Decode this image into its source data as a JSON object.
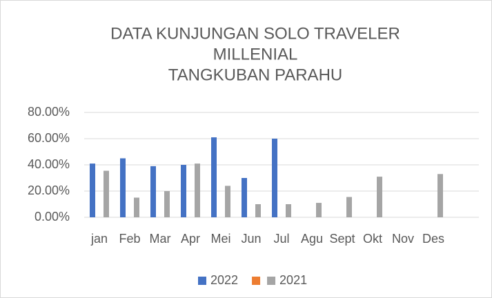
{
  "chart_data": {
    "type": "bar",
    "title": [
      "DATA KUNJUNGAN SOLO TRAVELER",
      "MILLENIAL",
      "TANGKUBAN PARAHU"
    ],
    "categories": [
      "jan",
      "Feb",
      "Mar",
      "Apr",
      "Mei",
      "Jun",
      "Jul",
      "Agu",
      "Sept",
      "Okt",
      "Nov",
      "Des",
      null
    ],
    "series": [
      {
        "name": "2022",
        "color": "#4472c4",
        "values": [
          41,
          45,
          39,
          40,
          61,
          30,
          60,
          null,
          null,
          null,
          null,
          null,
          null
        ]
      },
      {
        "color": "#ed7d31",
        "values": [
          null,
          null,
          null,
          null,
          null,
          null,
          null,
          null,
          null,
          null,
          null,
          null,
          null
        ]
      },
      {
        "name": "2021",
        "color": "#a5a5a5",
        "values": [
          35.5,
          15,
          20,
          41,
          24,
          10,
          10,
          11,
          15.5,
          31,
          null,
          33,
          null
        ]
      }
    ],
    "ylim": [
      0,
      80
    ],
    "yticks": [
      {
        "value": 0,
        "label": "0.00%"
      },
      {
        "value": 20,
        "label": "20.00%"
      },
      {
        "value": 40,
        "label": "40.00%"
      },
      {
        "value": 60,
        "label": "60.00%"
      },
      {
        "value": 80,
        "label": "80.00%"
      }
    ],
    "grid": true,
    "legend": "bottom"
  }
}
